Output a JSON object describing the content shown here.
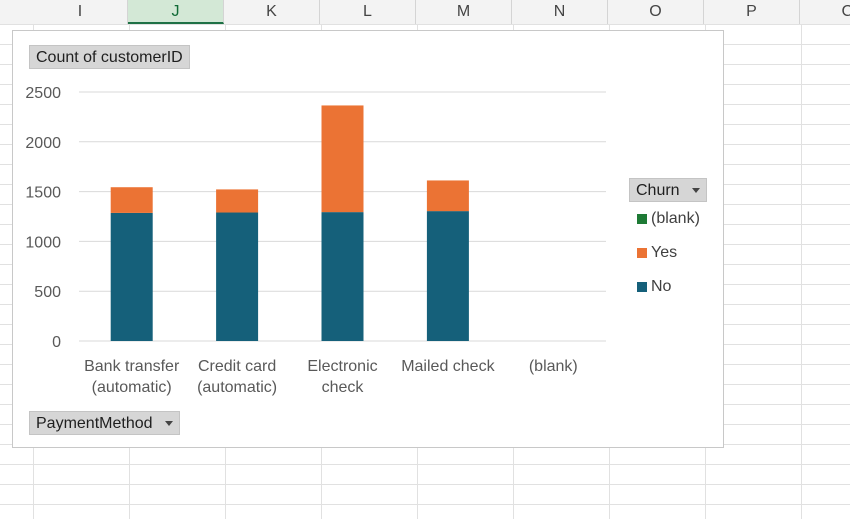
{
  "sheet": {
    "columns": [
      {
        "label": "I",
        "selected": false
      },
      {
        "label": "J",
        "selected": true
      },
      {
        "label": "K",
        "selected": false
      },
      {
        "label": "L",
        "selected": false
      },
      {
        "label": "M",
        "selected": false
      },
      {
        "label": "N",
        "selected": false
      },
      {
        "label": "O",
        "selected": false
      },
      {
        "label": "P",
        "selected": false
      },
      {
        "label": "C",
        "selected": false
      }
    ]
  },
  "pivot": {
    "value_field": "Count of customerID",
    "axis_field": "PaymentMethod",
    "legend_field": "Churn"
  },
  "chart_data": {
    "type": "bar",
    "stacked": true,
    "categories": [
      [
        "Bank transfer",
        "(automatic)"
      ],
      [
        "Credit card",
        "(automatic)"
      ],
      [
        "Electronic",
        "check"
      ],
      [
        "Mailed check"
      ],
      [
        "(blank)"
      ]
    ],
    "series": [
      {
        "name": "No",
        "color": "#15607a",
        "values": [
          1286,
          1290,
          1294,
          1304,
          0
        ]
      },
      {
        "name": "Yes",
        "color": "#eb7334",
        "values": [
          258,
          232,
          1071,
          308,
          0
        ]
      },
      {
        "name": "(blank)",
        "color": "#1e7a35",
        "values": [
          0,
          0,
          0,
          0,
          0
        ]
      }
    ],
    "legend_order": [
      "(blank)",
      "Yes",
      "No"
    ],
    "ylim": [
      0,
      2500
    ],
    "yticks": [
      0,
      500,
      1000,
      1500,
      2000,
      2500
    ],
    "grid": true,
    "legend_position": "right"
  }
}
